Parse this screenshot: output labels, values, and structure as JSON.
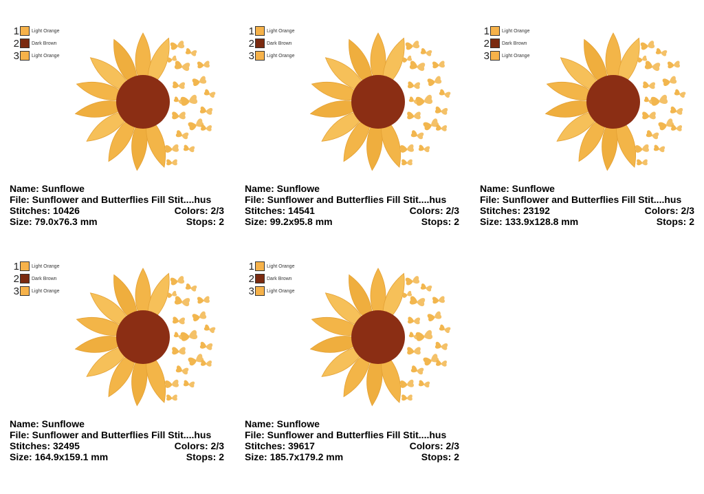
{
  "colors": {
    "light_orange": "#F6B24A",
    "dark_brown": "#7A2A10",
    "petal_a": "#F3B548",
    "petal_b": "#EFAE3E",
    "petal_c": "#F6C059",
    "center": "#8B2E14",
    "butterfly": "#F2B64E"
  },
  "legend": [
    {
      "num": "1",
      "label": "Light Orange",
      "color": "#F6B24A"
    },
    {
      "num": "2",
      "label": "Dark Brown",
      "color": "#7A2A10"
    },
    {
      "num": "3",
      "label": "Light Orange",
      "color": "#F6B24A"
    }
  ],
  "cards": [
    {
      "name": "Name: Sunflowe",
      "file": "File: Sunflower and Butterflies Fill Stit....hus",
      "stitches": "Stitches: 10426",
      "colors": "Colors: 2/3",
      "size": "Size: 79.0x76.3 mm",
      "stops": "Stops: 2"
    },
    {
      "name": "Name: Sunflowe",
      "file": "File: Sunflower and Butterflies Fill Stit....hus",
      "stitches": "Stitches: 14541",
      "colors": "Colors: 2/3",
      "size": "Size: 99.2x95.8 mm",
      "stops": "Stops: 2"
    },
    {
      "name": "Name: Sunflowe",
      "file": "File: Sunflower and Butterflies Fill Stit....hus",
      "stitches": "Stitches: 23192",
      "colors": "Colors: 2/3",
      "size": "Size: 133.9x128.8 mm",
      "stops": "Stops: 2"
    },
    {
      "name": "Name: Sunflowe",
      "file": "File: Sunflower and Butterflies Fill Stit....hus",
      "stitches": "Stitches: 32495",
      "colors": "Colors: 2/3",
      "size": "Size: 164.9x159.1 mm",
      "stops": "Stops: 2"
    },
    {
      "name": "Name: Sunflowe",
      "file": "File: Sunflower and Butterflies Fill Stit....hus",
      "stitches": "Stitches: 39617",
      "colors": "Colors: 2/3",
      "size": "Size: 185.7x179.2 mm",
      "stops": "Stops: 2"
    }
  ]
}
